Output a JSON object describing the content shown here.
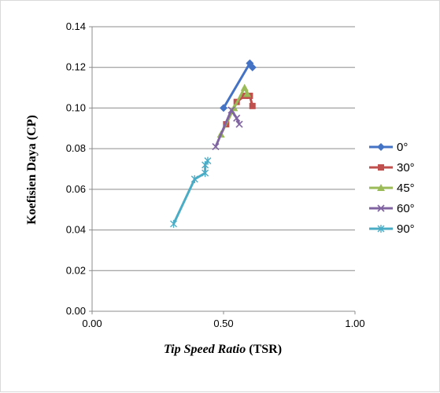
{
  "chart_data": {
    "type": "line",
    "xlabel_italic": "Tip Speed Ratio",
    "xlabel_rest": " (TSR)",
    "ylabel": "Koefisien Daya (CP)",
    "xlim": [
      0,
      1
    ],
    "ylim": [
      0,
      0.14
    ],
    "x_ticks": [
      "0.00",
      "0.50",
      "1.00"
    ],
    "y_ticks": [
      "0.00",
      "0.02",
      "0.04",
      "0.06",
      "0.08",
      "0.10",
      "0.12",
      "0.14"
    ],
    "grid": "horizontal",
    "legend_position": "right",
    "series": [
      {
        "name": "0°",
        "color": "#4472C4",
        "marker": "diamond",
        "points": [
          [
            0.5,
            0.1
          ],
          [
            0.6,
            0.122
          ],
          [
            0.61,
            0.12
          ]
        ]
      },
      {
        "name": "30°",
        "color": "#C0504D",
        "marker": "square",
        "points": [
          [
            0.51,
            0.092
          ],
          [
            0.55,
            0.103
          ],
          [
            0.58,
            0.106
          ],
          [
            0.6,
            0.106
          ],
          [
            0.61,
            0.101
          ]
        ]
      },
      {
        "name": "45°",
        "color": "#9BBB59",
        "marker": "triangle",
        "points": [
          [
            0.49,
            0.087
          ],
          [
            0.54,
            0.1
          ],
          [
            0.58,
            0.11
          ],
          [
            0.59,
            0.107
          ]
        ]
      },
      {
        "name": "60°",
        "color": "#8064A2",
        "marker": "x",
        "points": [
          [
            0.47,
            0.081
          ],
          [
            0.53,
            0.099
          ],
          [
            0.55,
            0.095
          ],
          [
            0.56,
            0.092
          ]
        ]
      },
      {
        "name": "90°",
        "color": "#4BACC6",
        "marker": "star",
        "points": [
          [
            0.31,
            0.043
          ],
          [
            0.39,
            0.065
          ],
          [
            0.43,
            0.068
          ],
          [
            0.43,
            0.072
          ],
          [
            0.44,
            0.074
          ]
        ]
      }
    ]
  }
}
